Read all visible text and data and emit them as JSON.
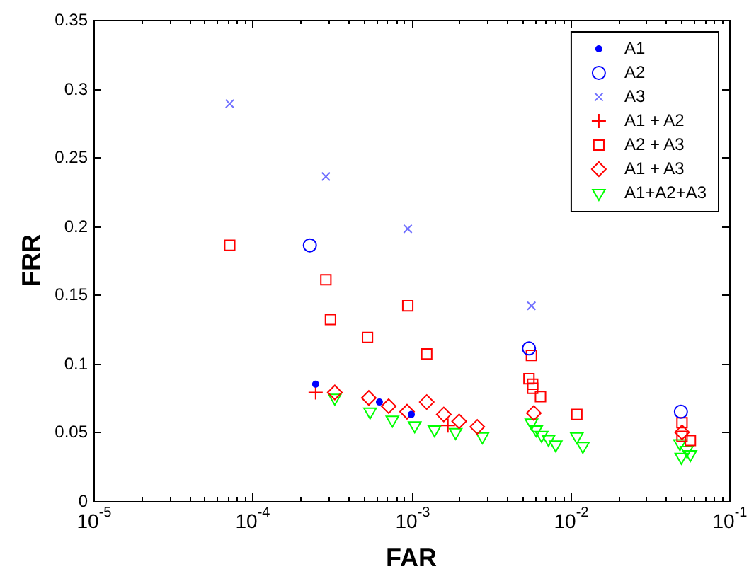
{
  "chart_data": {
    "type": "scatter",
    "xlabel": "FAR",
    "ylabel": "FRR",
    "log": "x",
    "legend": "top right",
    "grid": false,
    "xlim": [
      1e-05,
      0.1
    ],
    "xticks": [
      {
        "value": 1e-05,
        "label": "10$^{-5}$"
      },
      {
        "value": 2e-05,
        "label": null
      },
      {
        "value": 3e-05,
        "label": null
      },
      {
        "value": 4e-05,
        "label": null
      },
      {
        "value": 5e-05,
        "label": null
      },
      {
        "value": 6e-05,
        "label": null
      },
      {
        "value": 7e-05,
        "label": null
      },
      {
        "value": 8e-05,
        "label": null
      },
      {
        "value": 9e-05,
        "label": null
      },
      {
        "value": 0.0001,
        "label": "10$^{-4}$"
      },
      {
        "value": 0.0002,
        "label": null
      },
      {
        "value": 0.0003,
        "label": null
      },
      {
        "value": 0.0004,
        "label": null
      },
      {
        "value": 0.0005,
        "label": null
      },
      {
        "value": 0.0006,
        "label": null
      },
      {
        "value": 0.0007,
        "label": null
      },
      {
        "value": 0.0008,
        "label": null
      },
      {
        "value": 0.0009,
        "label": null
      },
      {
        "value": 0.001,
        "label": "10$^{-3}$"
      },
      {
        "value": 0.002,
        "label": null
      },
      {
        "value": 0.003,
        "label": null
      },
      {
        "value": 0.004,
        "label": null
      },
      {
        "value": 0.005,
        "label": null
      },
      {
        "value": 0.006,
        "label": null
      },
      {
        "value": 0.007,
        "label": null
      },
      {
        "value": 0.008,
        "label": null
      },
      {
        "value": 0.009,
        "label": null
      },
      {
        "value": 0.01,
        "label": "10$^{-2}$"
      },
      {
        "value": 0.02,
        "label": null
      },
      {
        "value": 0.03,
        "label": null
      },
      {
        "value": 0.04,
        "label": null
      },
      {
        "value": 0.05,
        "label": null
      },
      {
        "value": 0.06,
        "label": null
      },
      {
        "value": 0.07,
        "label": null
      },
      {
        "value": 0.08,
        "label": null
      },
      {
        "value": 0.09,
        "label": null
      },
      {
        "value": 0.1,
        "label": "10$^{-1}$"
      }
    ],
    "ylim": [
      0,
      0.35
    ],
    "yticks": [
      0,
      0.05,
      0.1,
      0.15,
      0.2,
      0.25,
      0.3,
      0.35
    ],
    "series": [
      {
        "name": "A1",
        "color": "#0000ff",
        "marker": "point",
        "x": [
          0.00025,
          0.00063,
          0.001
        ],
        "values": [
          0.085,
          0.072,
          0.063
        ]
      },
      {
        "name": "A2",
        "color": "#0000ff",
        "marker": "circle",
        "x": [
          0.00023,
          0.0055,
          0.0497
        ],
        "values": [
          0.186,
          0.111,
          0.065
        ]
      },
      {
        "name": "A3",
        "color": "#7070ff",
        "marker": "x",
        "x": [
          7.2e-05,
          0.00029,
          0.00095,
          0.0057
        ],
        "values": [
          0.289,
          0.236,
          0.198,
          0.142
        ]
      },
      {
        "name": "A1 + A2",
        "color": "#ff0000",
        "marker": "cross",
        "x": [
          0.00025,
          0.0017
        ],
        "values": [
          0.079,
          0.055
        ]
      },
      {
        "name": "A2 + A3",
        "color": "#ff0000",
        "marker": "square",
        "x": [
          7.2e-05,
          0.00029,
          0.00031,
          0.00053,
          0.00095,
          0.00125,
          0.0057,
          0.0055,
          0.0058,
          0.0058,
          0.0065,
          0.011,
          0.0505,
          0.0505,
          0.057
        ],
        "values": [
          0.186,
          0.161,
          0.132,
          0.119,
          0.142,
          0.107,
          0.106,
          0.089,
          0.085,
          0.082,
          0.076,
          0.063,
          0.057,
          0.047,
          0.044
        ]
      },
      {
        "name": "A1 + A3",
        "color": "#ff0000",
        "marker": "diamond",
        "x": [
          0.00033,
          0.00054,
          0.00072,
          0.00094,
          0.00125,
          0.0016,
          0.002,
          0.0026,
          0.0059,
          0.0505
        ],
        "values": [
          0.079,
          0.075,
          0.069,
          0.065,
          0.072,
          0.063,
          0.058,
          0.054,
          0.064,
          0.05
        ]
      },
      {
        "name": "A1+A2+A3",
        "color": "#00ff00",
        "marker": "triangle_down",
        "x": [
          0.00033,
          0.00055,
          0.00076,
          0.00105,
          0.0014,
          0.0019,
          0.0028,
          0.0057,
          0.0061,
          0.0066,
          0.0073,
          0.0081,
          0.011,
          0.012,
          0.049,
          0.054,
          0.05,
          0.057
        ],
        "values": [
          0.075,
          0.065,
          0.059,
          0.055,
          0.052,
          0.05,
          0.047,
          0.057,
          0.052,
          0.048,
          0.045,
          0.041,
          0.047,
          0.04,
          0.042,
          0.037,
          0.032,
          0.034
        ]
      }
    ]
  }
}
